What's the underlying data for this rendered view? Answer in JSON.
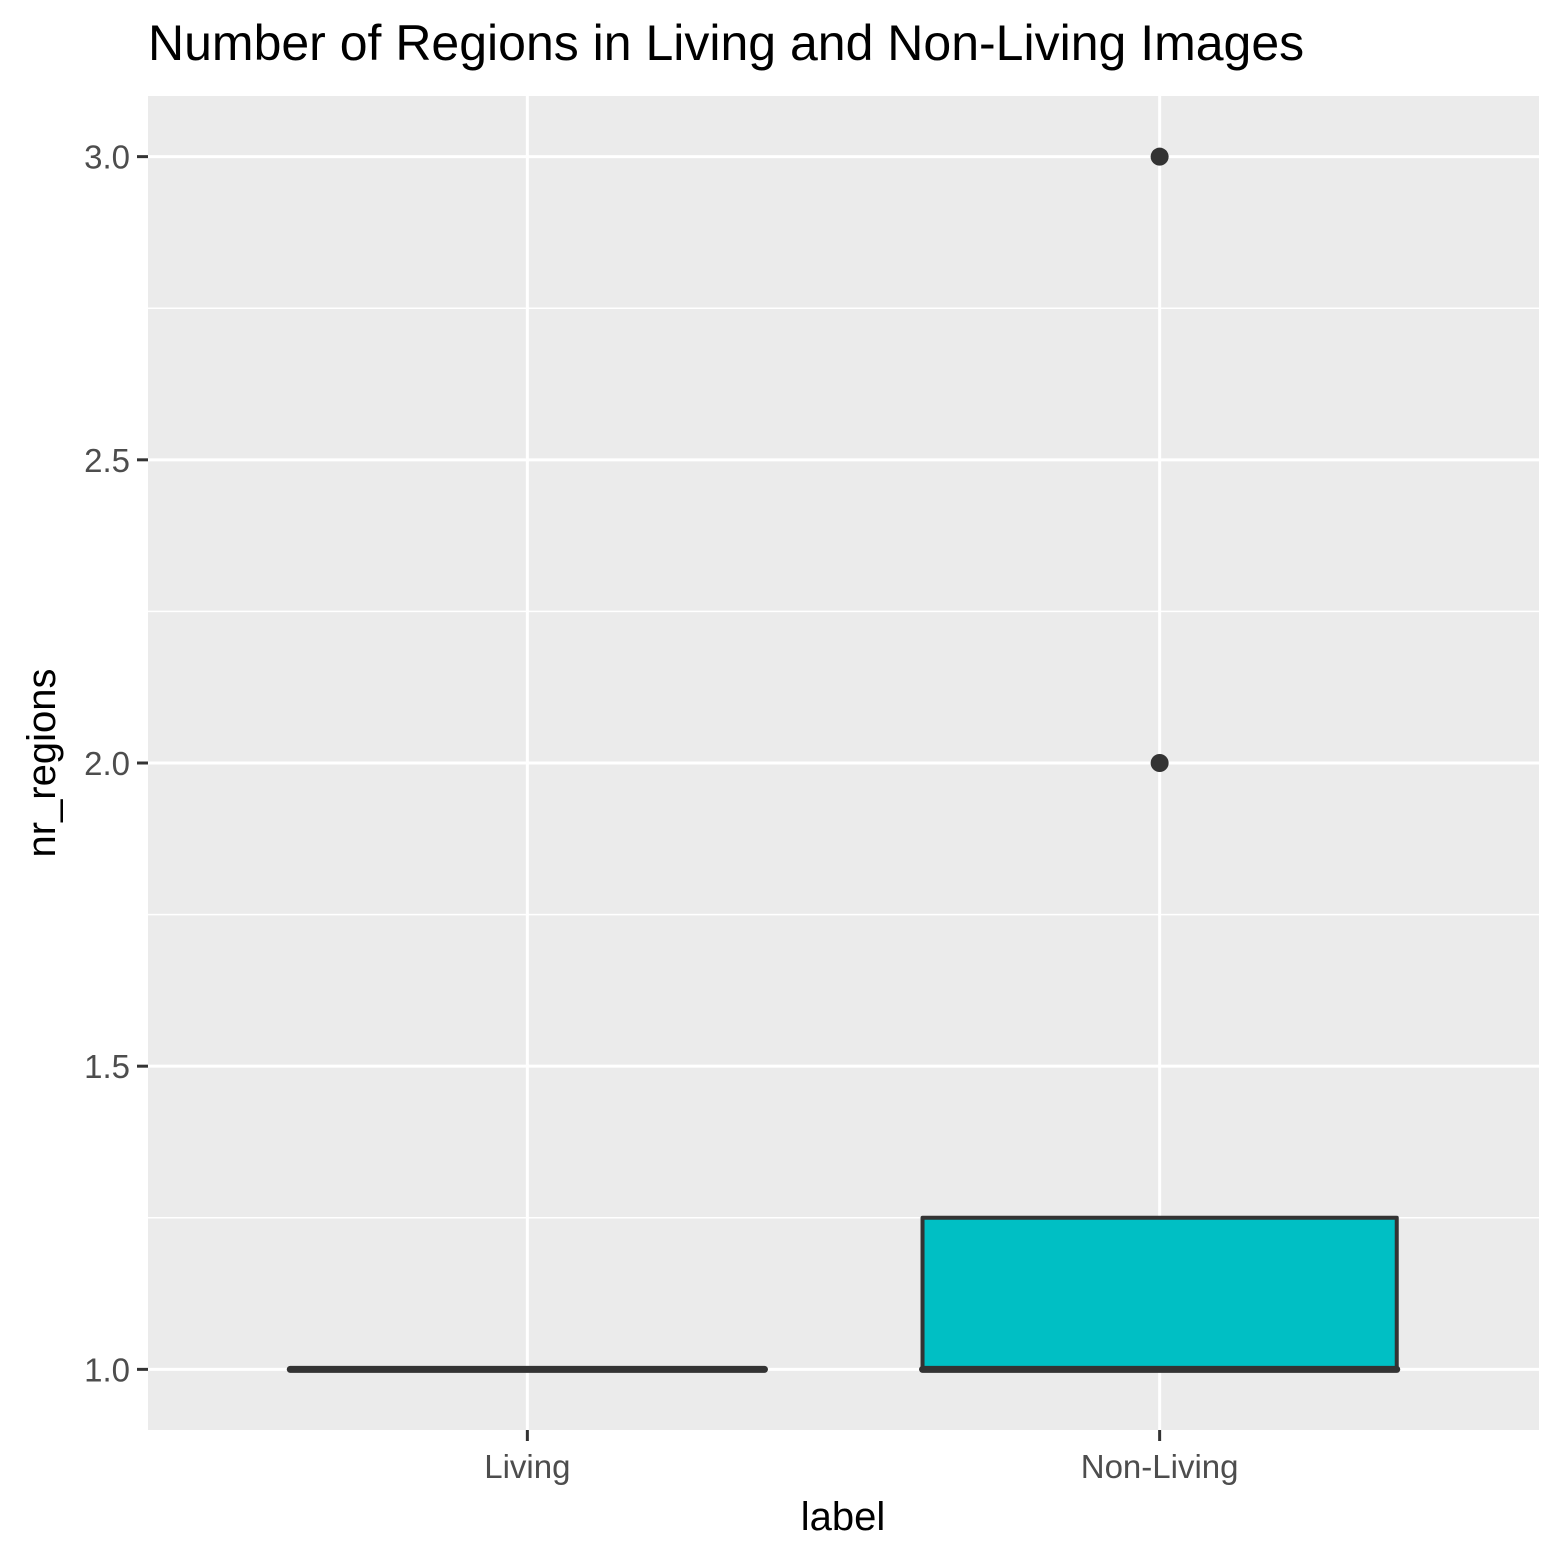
{
  "chart_data": {
    "type": "boxplot",
    "title": "Number of Regions in Living and Non-Living Images",
    "xlabel": "label",
    "ylabel": "nr_regions",
    "categories": [
      "Living",
      "Non-Living"
    ],
    "ylim": [
      0.9,
      3.1
    ],
    "yticks": [
      1.0,
      1.5,
      2.0,
      2.5,
      3.0
    ],
    "ytick_labels": [
      "1.0",
      "1.5",
      "2.0",
      "2.5",
      "3.0"
    ],
    "grid": true,
    "boxes": [
      {
        "category": "Living",
        "min": 1,
        "q1": 1,
        "median": 1,
        "q3": 1,
        "max": 1,
        "outliers": [],
        "fill": "#F8766D"
      },
      {
        "category": "Non-Living",
        "min": 1,
        "q1": 1,
        "median": 1,
        "q3": 1.25,
        "max": 1.25,
        "outliers": [
          2,
          3
        ],
        "fill": "#00BFC4"
      }
    ],
    "colors": {
      "panel": "#EBEBEB",
      "grid": "#FFFFFF",
      "box_line": "#333333",
      "outlier": "#333333"
    }
  }
}
